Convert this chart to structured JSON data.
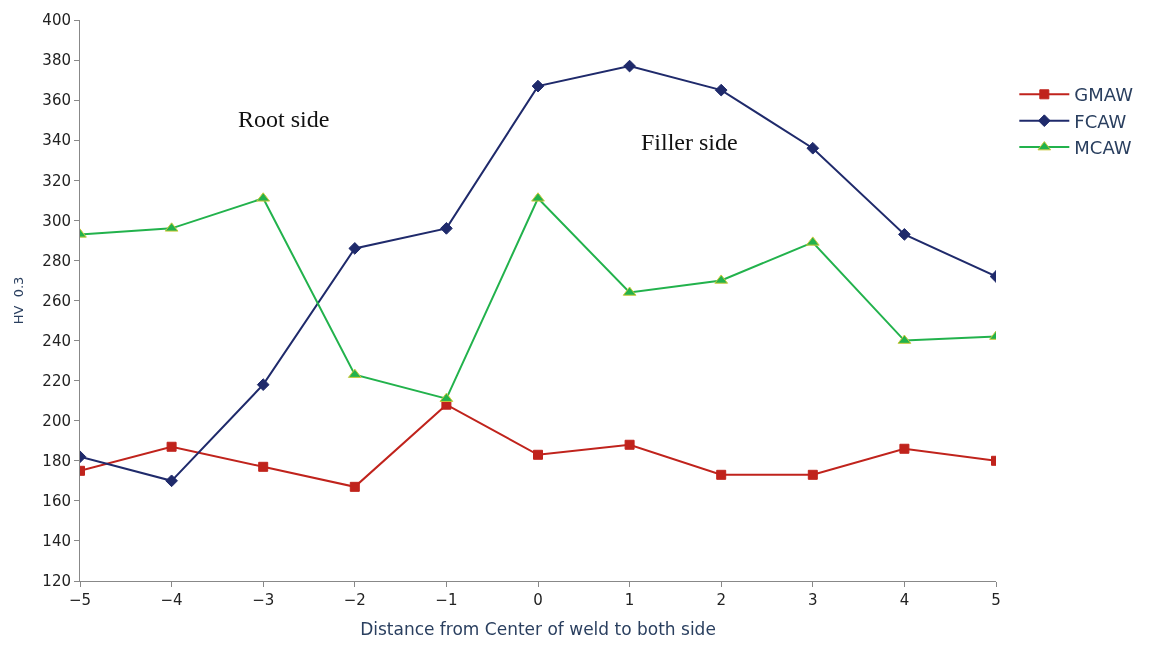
{
  "chart_data": {
    "type": "line",
    "xlabel": "Distance from Center of weld to both side",
    "ylabel": "HV  0.3",
    "x": [
      -5,
      -4,
      -3,
      -2,
      -1,
      0,
      1,
      2,
      3,
      4,
      5
    ],
    "series": [
      {
        "name": "GMAW",
        "color": "#c0231c",
        "marker": "square",
        "values": [
          175,
          187,
          177,
          167,
          208,
          183,
          188,
          173,
          173,
          186,
          180
        ]
      },
      {
        "name": "FCAW",
        "color": "#1f2a6b",
        "marker": "diamond",
        "values": [
          182,
          170,
          218,
          286,
          296,
          367,
          377,
          365,
          336,
          293,
          272
        ]
      },
      {
        "name": "MCAW",
        "color": "#22b24c",
        "marker": "triangle",
        "values": [
          293,
          296,
          311,
          223,
          211,
          311,
          264,
          270,
          289,
          240,
          242
        ]
      }
    ],
    "xlim": [
      -5,
      5
    ],
    "xticks": [
      -5,
      -4,
      -3,
      -2,
      -1,
      0,
      1,
      2,
      3,
      4,
      5
    ],
    "ylim": [
      120,
      400
    ],
    "yticks": [
      120,
      140,
      160,
      180,
      200,
      220,
      240,
      260,
      280,
      300,
      320,
      340,
      360,
      380,
      400
    ],
    "annotations": [
      "Root side",
      "Filler side"
    ],
    "legend": "right",
    "line_style": "solid"
  }
}
